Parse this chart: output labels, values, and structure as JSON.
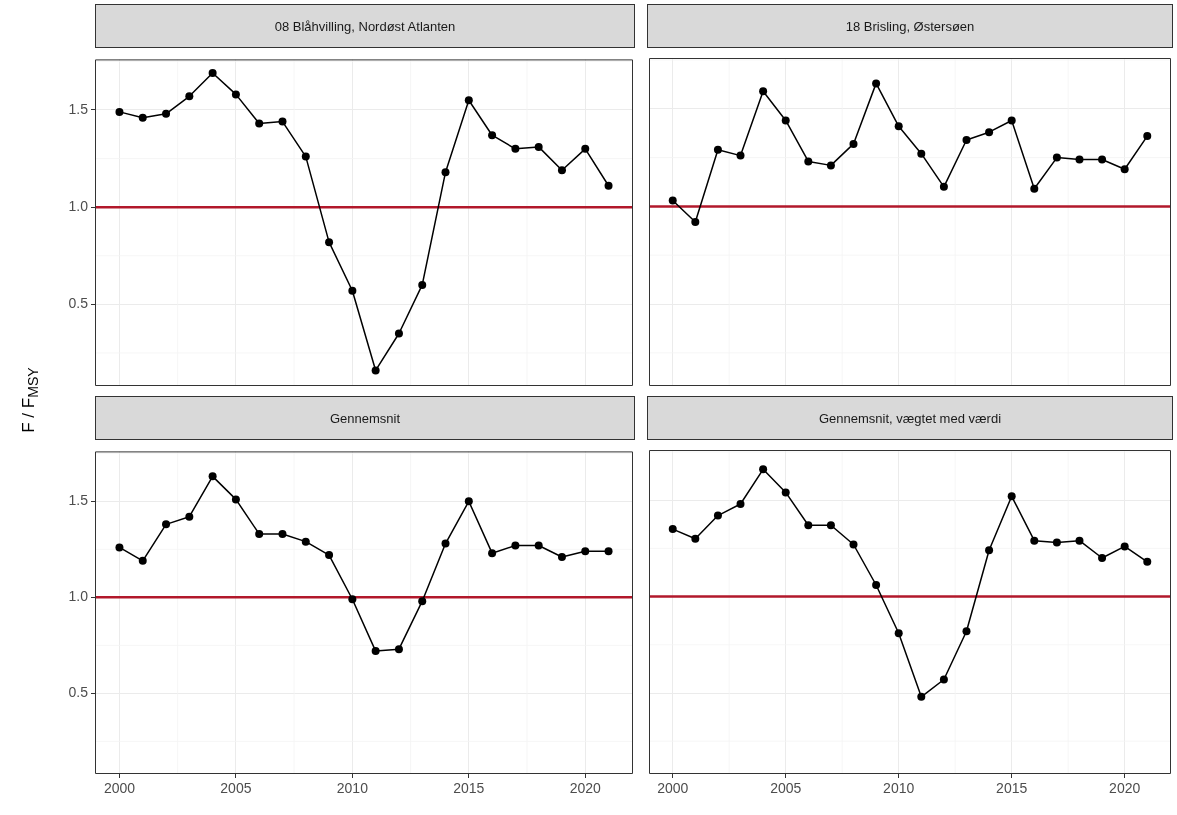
{
  "chart_data": [
    {
      "type": "line",
      "title": "08 Blåhvilling, Nordøst Atlanten",
      "ylabel": "F / F$_{MSY}$",
      "x": [
        2000,
        2001,
        2002,
        2003,
        2004,
        2005,
        2006,
        2007,
        2008,
        2009,
        2010,
        2011,
        2012,
        2013,
        2014,
        2015,
        2016,
        2017,
        2018,
        2019,
        2020,
        2021
      ],
      "series": [
        {
          "color": "#000000",
          "values": [
            1.49,
            1.46,
            1.48,
            1.57,
            1.69,
            1.58,
            1.43,
            1.44,
            1.26,
            0.82,
            0.57,
            0.16,
            0.35,
            0.6,
            1.18,
            1.55,
            1.37,
            1.3,
            1.31,
            1.19,
            1.3,
            1.11
          ]
        }
      ],
      "xlim": [
        1998.95,
        2022.05
      ],
      "ylim": [
        0.08,
        1.76
      ],
      "xticks": [
        2000,
        2005,
        2010,
        2015,
        2020
      ],
      "yticks": [
        0.5,
        {
          "value": 1,
          "label": "1.0"
        },
        1.5
      ],
      "ref_lines": [
        {
          "axis": "y",
          "value": 1,
          "color": "#b2182b"
        }
      ],
      "grid": true,
      "marker": "circle",
      "tick_labels": "y"
    },
    {
      "type": "line",
      "title": "18 Brisling, Østersøen",
      "x": [
        2000,
        2001,
        2002,
        2003,
        2004,
        2005,
        2006,
        2007,
        2008,
        2009,
        2010,
        2011,
        2012,
        2013,
        2014,
        2015,
        2016,
        2017,
        2018,
        2019,
        2020,
        2021
      ],
      "series": [
        {
          "color": "#000000",
          "values": [
            1.03,
            0.92,
            1.29,
            1.26,
            1.59,
            1.44,
            1.23,
            1.21,
            1.32,
            1.63,
            1.41,
            1.27,
            1.1,
            1.34,
            1.38,
            1.44,
            1.09,
            1.25,
            1.24,
            1.24,
            1.19,
            1.36
          ]
        }
      ],
      "xlim": [
        1998.95,
        2022.05
      ],
      "ylim": [
        0.08,
        1.76
      ],
      "xticks": [
        2000,
        2005,
        2010,
        2015,
        2020
      ],
      "yticks": [
        0.5,
        1,
        1.5
      ],
      "ref_lines": [
        {
          "axis": "y",
          "value": 1,
          "color": "#b2182b"
        }
      ],
      "grid": true,
      "marker": "circle",
      "tick_labels": false
    },
    {
      "type": "line",
      "title": "Gennemsnit",
      "x": [
        2000,
        2001,
        2002,
        2003,
        2004,
        2005,
        2006,
        2007,
        2008,
        2009,
        2010,
        2011,
        2012,
        2013,
        2014,
        2015,
        2016,
        2017,
        2018,
        2019,
        2020,
        2021
      ],
      "series": [
        {
          "color": "#000000",
          "values": [
            1.26,
            1.19,
            1.38,
            1.42,
            1.63,
            1.51,
            1.33,
            1.33,
            1.29,
            1.22,
            0.99,
            0.72,
            0.73,
            0.98,
            1.28,
            1.5,
            1.23,
            1.27,
            1.27,
            1.21,
            1.24,
            1.24
          ]
        }
      ],
      "xlim": [
        1998.95,
        2022.05
      ],
      "ylim": [
        0.08,
        1.76
      ],
      "xticks": [
        2000,
        2005,
        2010,
        2015,
        2020
      ],
      "yticks": [
        0.5,
        {
          "value": 1,
          "label": "1.0"
        },
        1.5
      ],
      "ref_lines": [
        {
          "axis": "y",
          "value": 1,
          "color": "#b2182b"
        }
      ],
      "grid": true,
      "marker": "circle"
    },
    {
      "type": "line",
      "title": "Gennemsnit, vægtet med værdi",
      "x": [
        2000,
        2001,
        2002,
        2003,
        2004,
        2005,
        2006,
        2007,
        2008,
        2009,
        2010,
        2011,
        2012,
        2013,
        2014,
        2015,
        2016,
        2017,
        2018,
        2019,
        2020,
        2021
      ],
      "series": [
        {
          "color": "#000000",
          "values": [
            1.35,
            1.3,
            1.42,
            1.48,
            1.66,
            1.54,
            1.37,
            1.37,
            1.27,
            1.06,
            0.81,
            0.48,
            0.57,
            0.82,
            1.24,
            1.52,
            1.29,
            1.28,
            1.29,
            1.2,
            1.26,
            1.18
          ]
        }
      ],
      "xlim": [
        1998.95,
        2022.05
      ],
      "ylim": [
        0.08,
        1.76
      ],
      "xticks": [
        2000,
        2005,
        2010,
        2015,
        2020
      ],
      "yticks": [
        0.5,
        1,
        1.5
      ],
      "ref_lines": [
        {
          "axis": "y",
          "value": 1,
          "color": "#b2182b"
        }
      ],
      "grid": true,
      "marker": "circle",
      "tick_labels": "x"
    }
  ]
}
